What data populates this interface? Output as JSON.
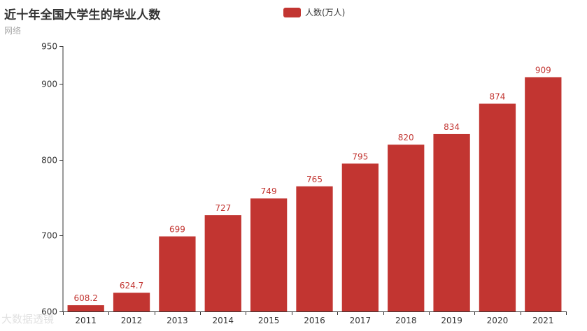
{
  "title": "近十年全国大学生的毕业人数",
  "subtitle": "网络",
  "watermark": "大数据透镜",
  "legend": {
    "label": "人数(万人)",
    "color": "#c23531"
  },
  "chart_data": {
    "type": "bar",
    "title": "近十年全国大学生的毕业人数",
    "subtitle": "网络",
    "categories": [
      "2011",
      "2012",
      "2013",
      "2014",
      "2015",
      "2016",
      "2017",
      "2018",
      "2019",
      "2020",
      "2021"
    ],
    "series": [
      {
        "name": "人数(万人)",
        "color": "#c23531",
        "values": [
          608.2,
          624.7,
          699,
          727,
          749,
          765,
          795,
          820,
          834,
          874,
          909
        ],
        "value_labels": [
          "608.2",
          "624.7",
          "699",
          "727",
          "749",
          "765",
          "795",
          "820",
          "834",
          "874",
          "909"
        ]
      }
    ],
    "ylim": [
      600,
      950
    ],
    "yticks": [
      600,
      700,
      800,
      900,
      950
    ],
    "xlabel": "",
    "ylabel": "",
    "grid": false,
    "legend_position": "top-center"
  }
}
